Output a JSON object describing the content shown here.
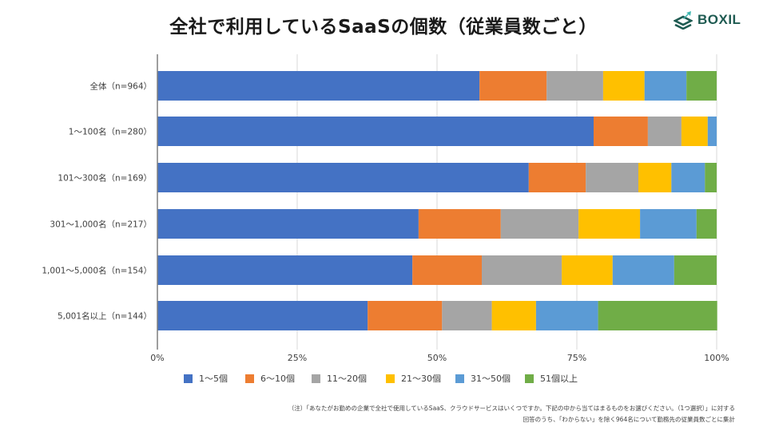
{
  "header": {
    "title": "全社で利用しているSaaSの個数（従業員数ごと）",
    "logo_text": "BOXIL",
    "logo_icon": "boxil-stack-icon"
  },
  "chart_data": {
    "type": "bar",
    "orientation": "horizontal",
    "stacked": "100%",
    "title": "全社で利用しているSaaSの個数（従業員数ごと）",
    "xlabel": "",
    "ylabel": "",
    "xlim": [
      0,
      100
    ],
    "x_ticks": [
      "0%",
      "25%",
      "50%",
      "75%",
      "100%"
    ],
    "grid": true,
    "legend_position": "bottom",
    "categories": [
      "全体（n=964）",
      "1～100名（n=280）",
      "101～300名（n=169）",
      "301～1,000名（n=217）",
      "1,001～5,000名（n=154）",
      "5,001名以上（n=144）"
    ],
    "series": [
      {
        "name": "1～5個",
        "color": "#4472C4",
        "values": [
          57.6,
          78.0,
          66.4,
          46.7,
          45.6,
          37.6
        ]
      },
      {
        "name": "6～10個",
        "color": "#ED7D31",
        "values": [
          12.0,
          9.7,
          10.2,
          14.7,
          12.4,
          13.3
        ]
      },
      {
        "name": "11～20個",
        "color": "#A5A5A5",
        "values": [
          10.1,
          6.0,
          9.4,
          13.9,
          14.3,
          8.9
        ]
      },
      {
        "name": "21～30個",
        "color": "#FFC000",
        "values": [
          7.4,
          4.7,
          5.9,
          11.0,
          9.1,
          7.9
        ]
      },
      {
        "name": "31～50個",
        "color": "#5B9BD5",
        "values": [
          7.5,
          1.6,
          6.0,
          10.1,
          11.0,
          11.1
        ]
      },
      {
        "name": "51個以上",
        "color": "#70AD47",
        "values": [
          5.4,
          0.0,
          2.1,
          3.6,
          7.6,
          21.3
        ]
      }
    ]
  },
  "footnote": {
    "line1": "（注）「あなたがお勤めの企業で全社で使用しているSaaS、クラウドサービスはいくつですか。下記の中から当てはまるものをお選びください。（1つ選択）」に対する",
    "line2": "回答のうち、「わからない」を除く964名について勤務先の従業員数ごとに集計"
  }
}
